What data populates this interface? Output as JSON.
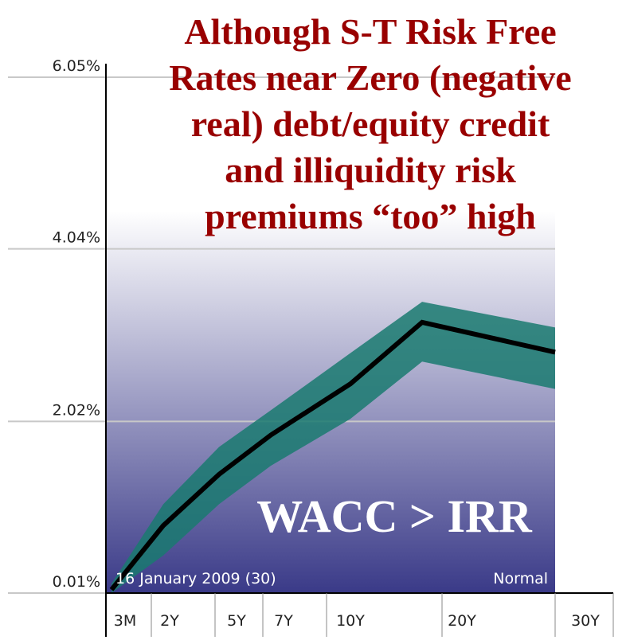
{
  "chart_data": {
    "type": "line",
    "title_lines": [
      "Although S-T Risk Free",
      "Rates near Zero (negative",
      "real) debt/equity credit",
      "and illiquidity risk",
      "premiums “too” high"
    ],
    "annotations": [
      "WACC > IRR",
      "16 January 2009 (30)",
      "Normal"
    ],
    "categories": [
      "3M",
      "2Y",
      "5Y",
      "7Y",
      "10Y",
      "20Y",
      "30Y"
    ],
    "series": [
      {
        "color": "#000000",
        "values": [
          0.05,
          0.8,
          1.4,
          1.86,
          2.46,
          3.18,
          2.83
        ]
      }
    ],
    "band_high": [
      0.12,
      1.05,
      1.72,
      2.15,
      2.82,
      3.42,
      3.12
    ],
    "band_low": [
      0.01,
      0.45,
      1.05,
      1.5,
      2.05,
      2.72,
      2.4
    ],
    "band_color": "#1a7a70",
    "ylim": [
      0.01,
      6.05
    ],
    "yticks": [
      {
        "value": 0.01,
        "label": "0.01%"
      },
      {
        "value": 2.02,
        "label": "2.02%"
      },
      {
        "value": 4.04,
        "label": "4.04%"
      },
      {
        "value": 6.05,
        "label": "6.05%"
      }
    ],
    "grid": true
  }
}
